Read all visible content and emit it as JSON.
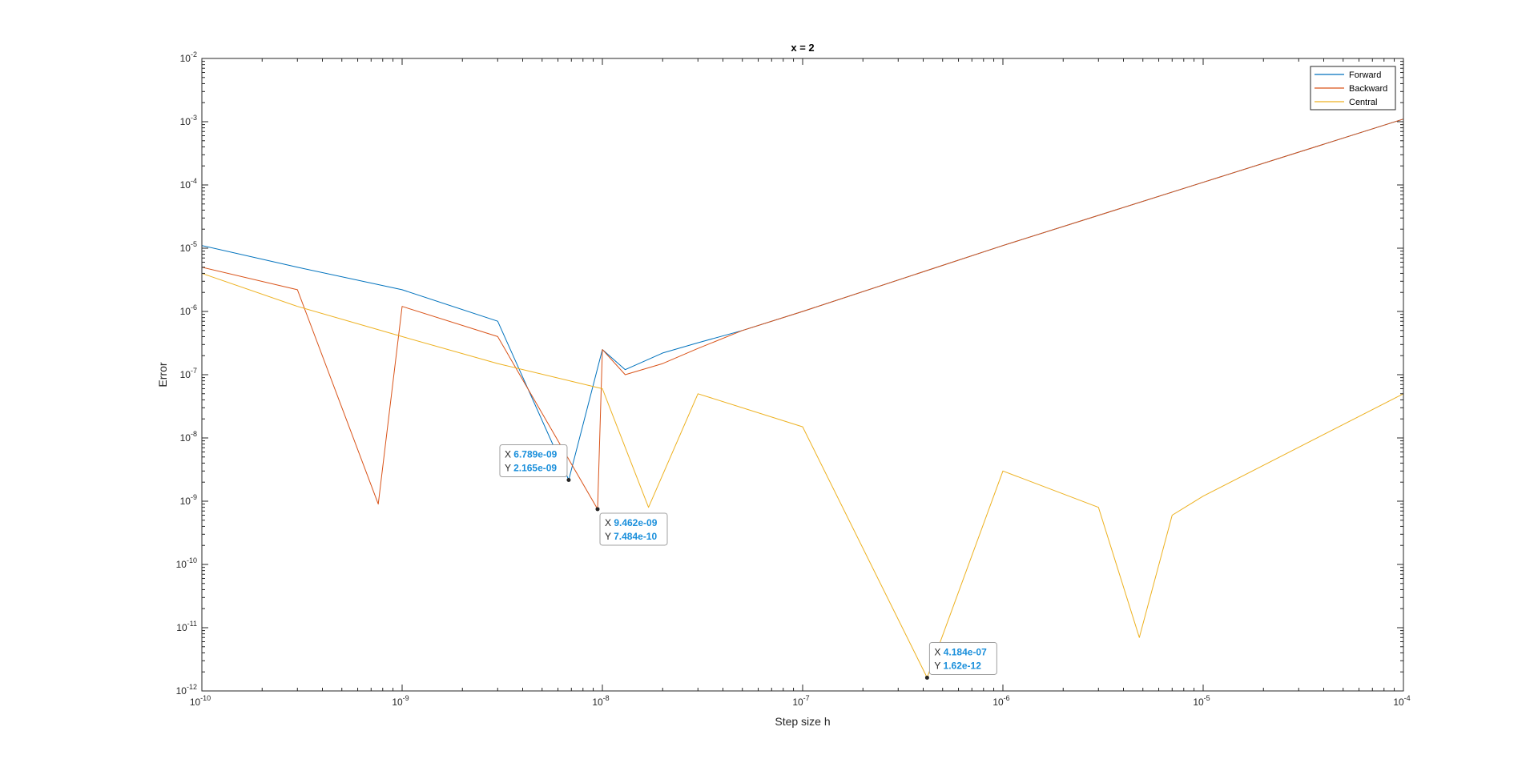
{
  "chart_data": {
    "type": "line",
    "title": "x = 2",
    "xlabel": "Step size h",
    "ylabel": "Error",
    "xscale": "log",
    "yscale": "log",
    "xlim": [
      1e-10,
      0.0001
    ],
    "ylim": [
      1e-12,
      0.01
    ],
    "x_ticks": [
      {
        "value": 1e-10,
        "base": "10",
        "exp": "-10"
      },
      {
        "value": 1e-09,
        "base": "10",
        "exp": "-9"
      },
      {
        "value": 1e-08,
        "base": "10",
        "exp": "-8"
      },
      {
        "value": 1e-07,
        "base": "10",
        "exp": "-7"
      },
      {
        "value": 1e-06,
        "base": "10",
        "exp": "-6"
      },
      {
        "value": 1e-05,
        "base": "10",
        "exp": "-5"
      },
      {
        "value": 0.0001,
        "base": "10",
        "exp": "-4"
      }
    ],
    "y_ticks": [
      {
        "value": 1e-12,
        "base": "10",
        "exp": "-12"
      },
      {
        "value": 1e-11,
        "base": "10",
        "exp": "-11"
      },
      {
        "value": 1e-10,
        "base": "10",
        "exp": "-10"
      },
      {
        "value": 1e-09,
        "base": "10",
        "exp": "-9"
      },
      {
        "value": 1e-08,
        "base": "10",
        "exp": "-8"
      },
      {
        "value": 1e-07,
        "base": "10",
        "exp": "-7"
      },
      {
        "value": 1e-06,
        "base": "10",
        "exp": "-6"
      },
      {
        "value": 1e-05,
        "base": "10",
        "exp": "-5"
      },
      {
        "value": 0.0001,
        "base": "10",
        "exp": "-4"
      },
      {
        "value": 0.001,
        "base": "10",
        "exp": "-3"
      },
      {
        "value": 0.01,
        "base": "10",
        "exp": "-2"
      }
    ],
    "grid": false,
    "legend_position": "top-right",
    "series": [
      {
        "name": "Forward",
        "color": "#0072BD",
        "x": [
          1e-10,
          3e-10,
          1e-09,
          3e-09,
          6.789e-09,
          1e-08,
          1.3e-08,
          2e-08,
          3e-08,
          5e-08,
          1e-07,
          1e-06,
          1e-05,
          0.0001
        ],
        "y": [
          1.1e-05,
          5e-06,
          2.2e-06,
          7e-07,
          2.165e-09,
          2.5e-07,
          1.2e-07,
          2.2e-07,
          3.2e-07,
          5e-07,
          1e-06,
          1.1e-05,
          0.00011,
          0.0011
        ]
      },
      {
        "name": "Backward",
        "color": "#D95319",
        "x": [
          1e-10,
          3e-10,
          7.6e-10,
          1e-09,
          3e-09,
          9.462e-09,
          1e-08,
          1.3e-08,
          2e-08,
          3e-08,
          5e-08,
          1e-07,
          1e-06,
          1e-05,
          0.0001
        ],
        "y": [
          5e-06,
          2.2e-06,
          9e-10,
          1.2e-06,
          4e-07,
          7.484e-10,
          2.5e-07,
          1e-07,
          1.5e-07,
          2.6e-07,
          5e-07,
          1e-06,
          1.1e-05,
          0.00011,
          0.0011
        ]
      },
      {
        "name": "Central",
        "color": "#EDB120",
        "x": [
          1e-10,
          3e-10,
          1e-09,
          3e-09,
          1e-08,
          1.7e-08,
          3e-08,
          1e-07,
          4.184e-07,
          1e-06,
          3e-06,
          4.8e-06,
          7e-06,
          1e-05,
          0.0001
        ],
        "y": [
          4e-06,
          1.2e-06,
          4e-07,
          1.5e-07,
          6e-08,
          8e-10,
          5e-08,
          1.5e-08,
          1.62e-12,
          3e-09,
          8e-10,
          7e-12,
          6e-10,
          1.2e-09,
          5e-08
        ]
      }
    ],
    "datatips": [
      {
        "x_label": "X",
        "y_label": "Y",
        "x": 6.789e-09,
        "y": 2.165e-09,
        "x_text": "6.789e-09",
        "y_text": "2.165e-09",
        "placement": "above-left"
      },
      {
        "x_label": "X",
        "y_label": "Y",
        "x": 9.462e-09,
        "y": 7.484e-10,
        "x_text": "9.462e-09",
        "y_text": "7.484e-10",
        "placement": "below-right"
      },
      {
        "x_label": "X",
        "y_label": "Y",
        "x": 4.184e-07,
        "y": 1.62e-12,
        "x_text": "4.184e-07",
        "y_text": "1.62e-12",
        "placement": "above-right"
      }
    ]
  }
}
